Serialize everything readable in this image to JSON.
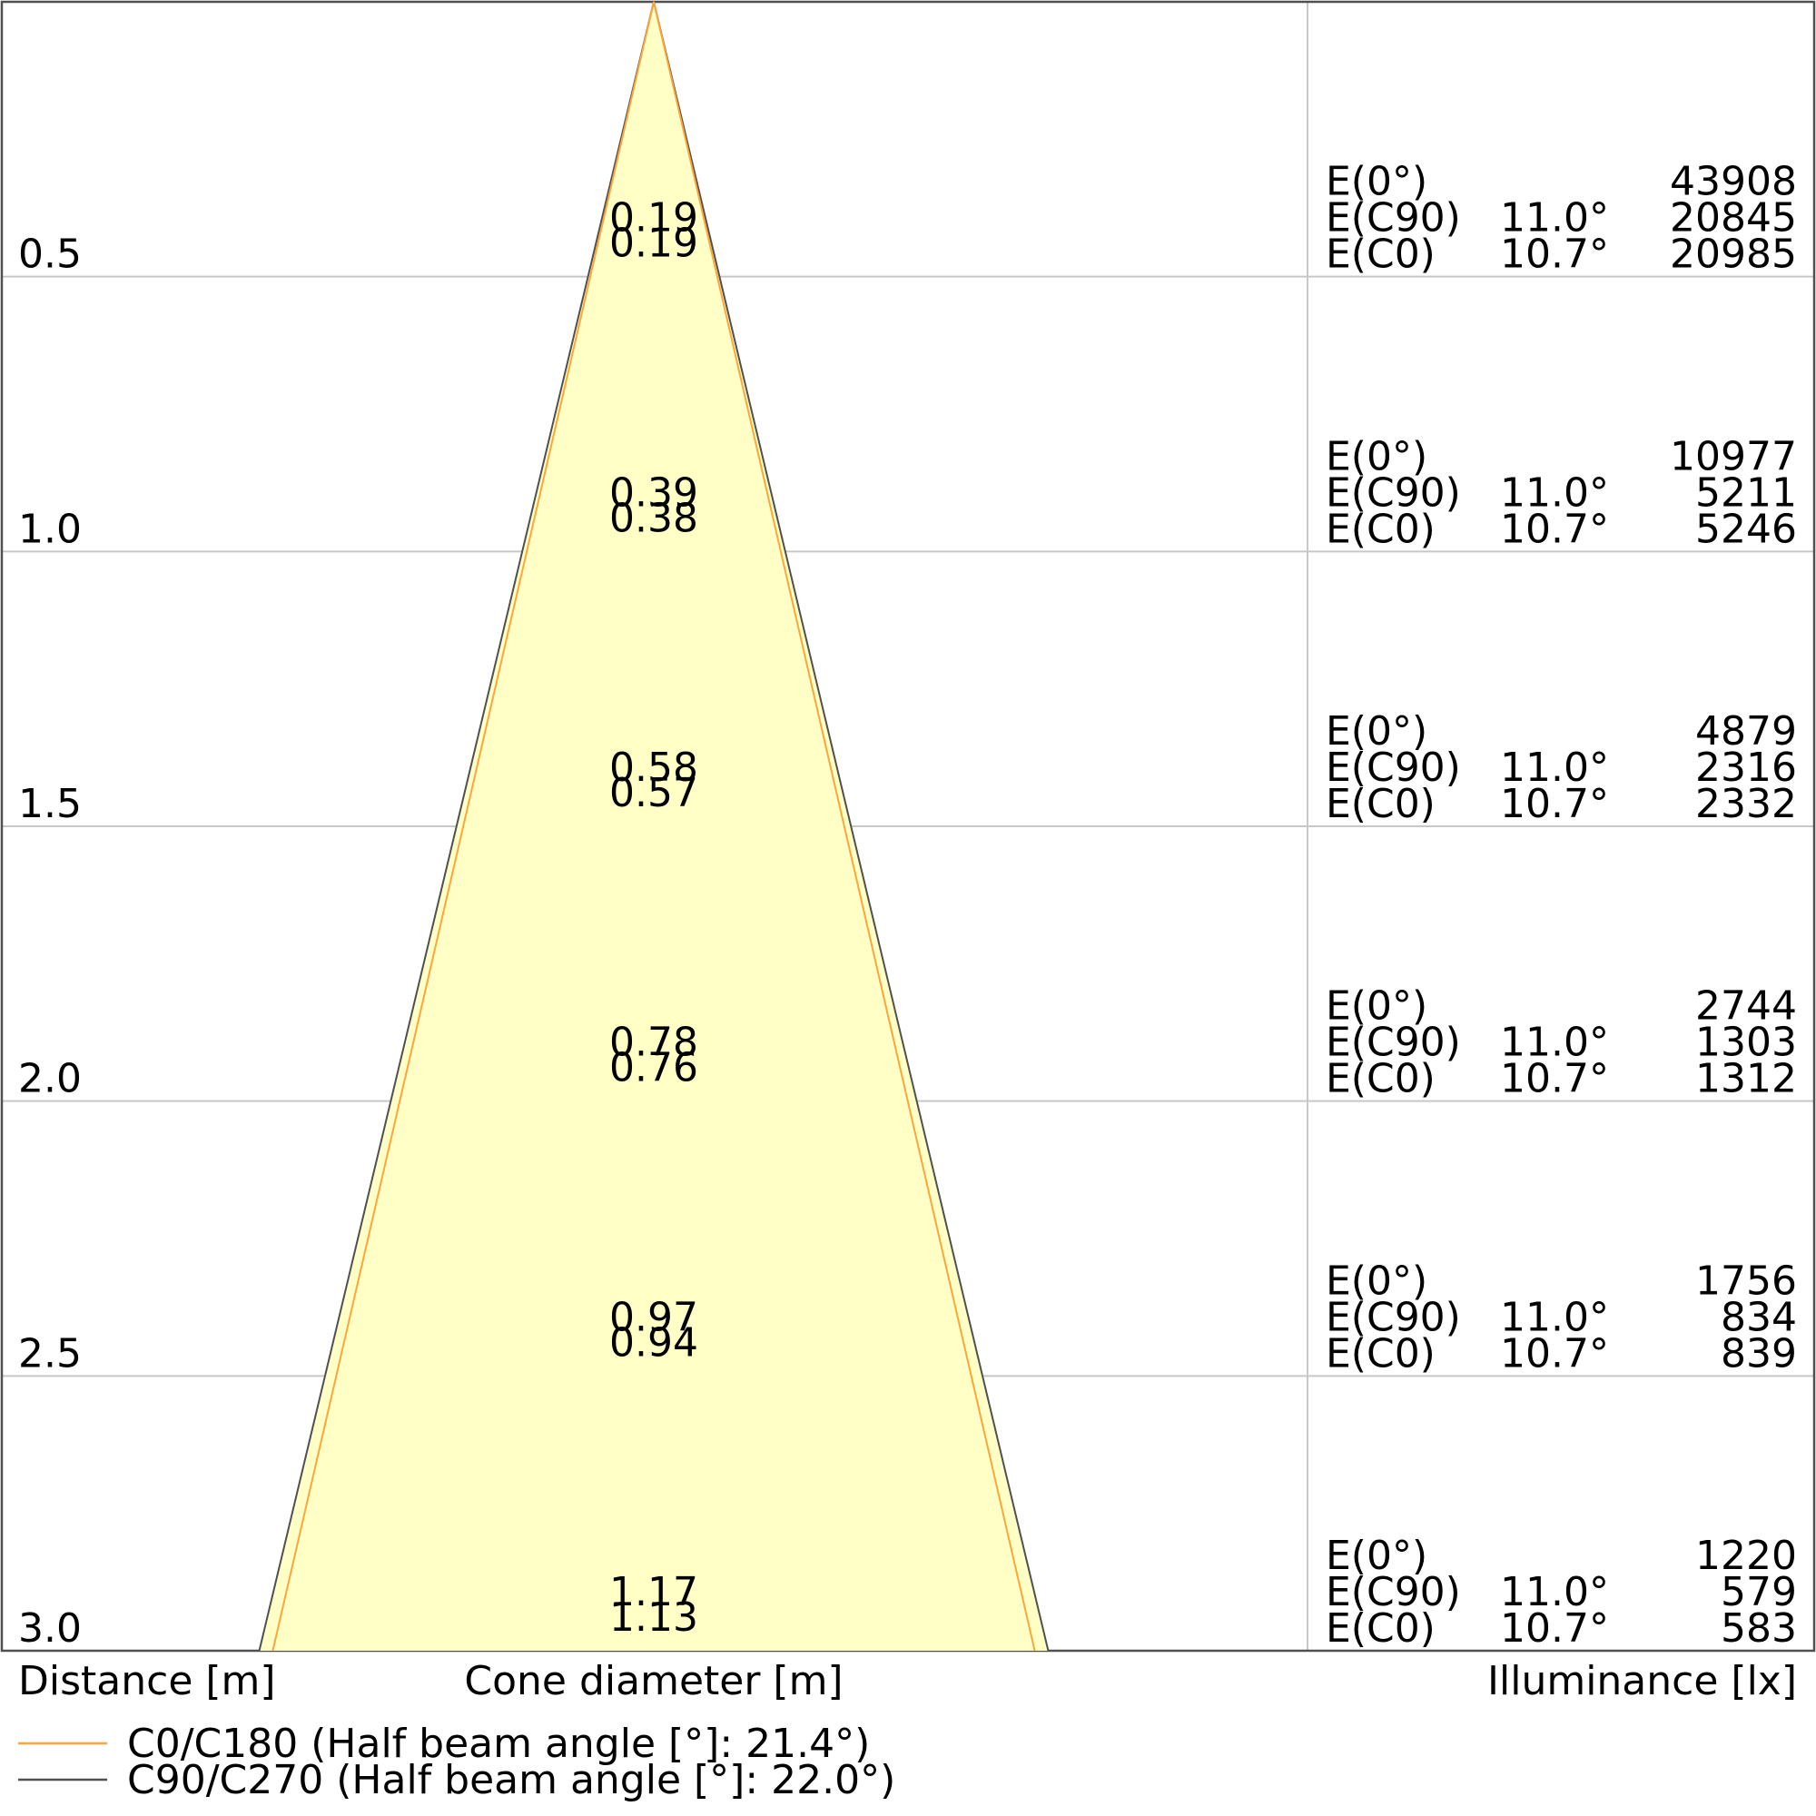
{
  "chart_data": {
    "type": "cone-diagram",
    "xlabel": "Distance [m]",
    "cone_label": "Cone diameter [m]",
    "ylabel": "Illuminance [lx]",
    "distance_range": [
      0,
      3.0
    ],
    "grid": true,
    "colors": {
      "fill": "#ffffc6",
      "c0_line": "#ffa53c",
      "c90_line": "#505050",
      "grid": "#c8c8c8",
      "frame": "#505050"
    },
    "series": [
      {
        "name": "C0/C180 (Half beam angle [°]: 21.4°)",
        "key": "C0",
        "color": "#ffa53c",
        "half_beam_angle": 21.4
      },
      {
        "name": "C90/C270 (Half beam angle [°]: 22.0°)",
        "key": "C90",
        "color": "#505050",
        "half_beam_angle": 22.0
      }
    ],
    "rows": [
      {
        "distance": "0.5",
        "d": 0.5,
        "dia_c90": "0.19",
        "dia_c0": "0.19",
        "e0": "43908",
        "ec90": "20845",
        "ec0": "20985"
      },
      {
        "distance": "1.0",
        "d": 1.0,
        "dia_c90": "0.39",
        "dia_c0": "0.38",
        "e0": "10977",
        "ec90": "5211",
        "ec0": "5246"
      },
      {
        "distance": "1.5",
        "d": 1.5,
        "dia_c90": "0.58",
        "dia_c0": "0.57",
        "e0": "4879",
        "ec90": "2316",
        "ec0": "2332"
      },
      {
        "distance": "2.0",
        "d": 2.0,
        "dia_c90": "0.78",
        "dia_c0": "0.76",
        "e0": "2744",
        "ec90": "1303",
        "ec0": "1312"
      },
      {
        "distance": "2.5",
        "d": 2.5,
        "dia_c90": "0.97",
        "dia_c0": "0.94",
        "e0": "1756",
        "ec90": "834",
        "ec0": "839"
      },
      {
        "distance": "3.0",
        "d": 3.0,
        "dia_c90": "1.17",
        "dia_c0": "1.13",
        "e0": "1220",
        "ec90": "579",
        "ec0": "583"
      }
    ],
    "row_labels": {
      "e0": "E(0°)",
      "ec90": "E(C90)",
      "ec0": "E(C0)"
    },
    "angle_labels": {
      "c90": "11.0°",
      "c0": "10.7°"
    }
  }
}
